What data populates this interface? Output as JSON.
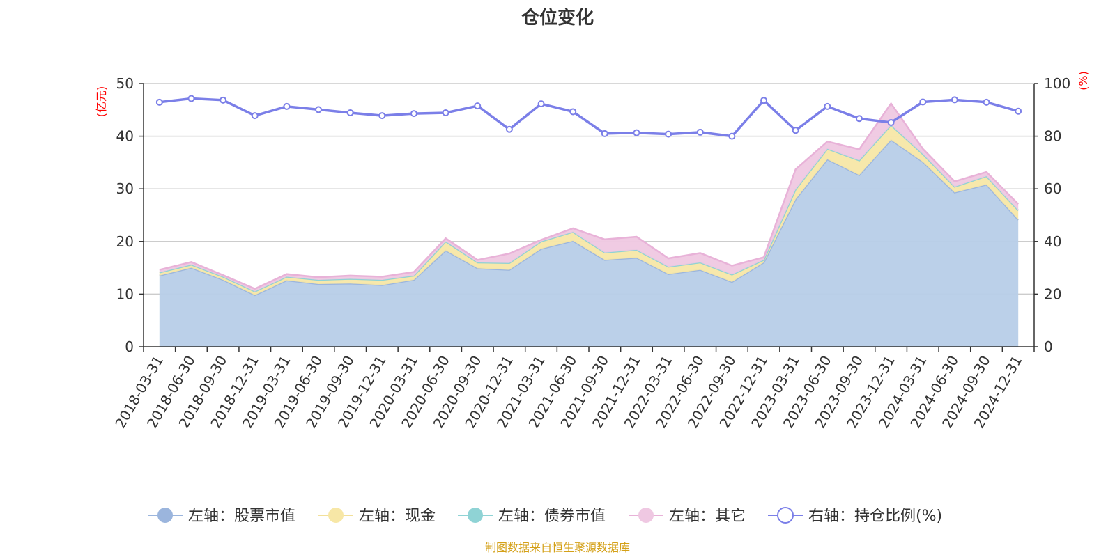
{
  "title": "仓位变化",
  "source_note": "制图数据来自恒生聚源数据库",
  "colors": {
    "stock": "#b7cde8",
    "stock_line": "#9bb5dd",
    "cash": "#f7e7a6",
    "cash_line": "#f2e09a",
    "bond": "#8fd3d5",
    "bond_line": "#8fd3d5",
    "other": "#efc8e2",
    "other_line": "#e8b2d8",
    "ratio": "#7b7fe8",
    "unit": "#ff0000",
    "source": "#d4a017",
    "grid": "#cccccc",
    "axis": "#333333"
  },
  "chart_data": {
    "type": "area",
    "title": "仓位变化",
    "left_axis": {
      "unit": "(亿元)",
      "ylim": [
        0,
        50
      ],
      "ticks": [
        0,
        10,
        20,
        30,
        40,
        50
      ]
    },
    "right_axis": {
      "unit": "(%)",
      "ylim": [
        0,
        100
      ],
      "ticks": [
        0,
        20,
        40,
        60,
        80,
        100
      ]
    },
    "grid": true,
    "legend_position": "bottom",
    "categories": [
      "2018-03-31",
      "2018-06-30",
      "2018-09-30",
      "2018-12-31",
      "2019-03-31",
      "2019-06-30",
      "2019-09-30",
      "2019-12-31",
      "2020-03-31",
      "2020-06-30",
      "2020-09-30",
      "2020-12-31",
      "2021-03-31",
      "2021-06-30",
      "2021-09-30",
      "2021-12-31",
      "2022-03-31",
      "2022-06-30",
      "2022-09-30",
      "2022-12-31",
      "2023-03-31",
      "2023-06-30",
      "2023-09-30",
      "2023-12-31",
      "2024-03-31",
      "2024-06-30",
      "2024-09-30",
      "2024-12-31"
    ],
    "series": [
      {
        "key": "stock",
        "name": "左轴：股票市值",
        "axis": "left",
        "stacked": true,
        "values": [
          13.5,
          15.0,
          12.7,
          9.8,
          12.6,
          11.9,
          12.0,
          11.7,
          12.7,
          18.3,
          14.9,
          14.6,
          18.6,
          20.1,
          16.5,
          16.9,
          13.8,
          14.6,
          12.3,
          16.0,
          28.0,
          35.6,
          32.6,
          39.3,
          35.1,
          29.3,
          30.8,
          24.1
        ]
      },
      {
        "key": "cash",
        "name": "左轴：现金",
        "axis": "left",
        "stacked": true,
        "values": [
          0.6,
          0.6,
          0.6,
          0.7,
          0.7,
          0.8,
          0.9,
          1.0,
          0.8,
          1.7,
          1.1,
          1.3,
          1.4,
          1.7,
          1.4,
          1.5,
          1.4,
          1.4,
          1.4,
          0.5,
          1.9,
          2.0,
          2.8,
          2.8,
          1.5,
          1.1,
          1.6,
          1.8
        ]
      },
      {
        "key": "bond",
        "name": "左轴：债券市值",
        "axis": "left",
        "stacked": true,
        "values": [
          0,
          0,
          0,
          0,
          0,
          0,
          0,
          0,
          0,
          0,
          0,
          0,
          0,
          0,
          0,
          0,
          0,
          0,
          0,
          0,
          0,
          0,
          0,
          0,
          0,
          0,
          0,
          0
        ]
      },
      {
        "key": "other",
        "name": "左轴：其它",
        "axis": "left",
        "stacked": true,
        "values": [
          0.5,
          0.5,
          0.3,
          0.5,
          0.5,
          0.5,
          0.6,
          0.6,
          0.7,
          0.6,
          0.5,
          1.8,
          0.3,
          0.7,
          2.5,
          2.5,
          1.6,
          1.8,
          1.7,
          0.5,
          3.8,
          1.4,
          2.1,
          4.1,
          1.0,
          1.0,
          0.8,
          1.2
        ]
      },
      {
        "key": "ratio",
        "name": "右轴：持仓比例(%)",
        "axis": "right",
        "type": "line",
        "values": [
          92.9,
          94.3,
          93.7,
          87.8,
          91.3,
          90.1,
          88.9,
          87.8,
          88.6,
          88.9,
          91.5,
          82.6,
          92.3,
          89.3,
          81.0,
          81.3,
          80.8,
          81.5,
          80.0,
          93.6,
          82.2,
          91.3,
          86.7,
          85.2,
          93.0,
          93.8,
          92.9,
          89.5
        ]
      }
    ]
  }
}
